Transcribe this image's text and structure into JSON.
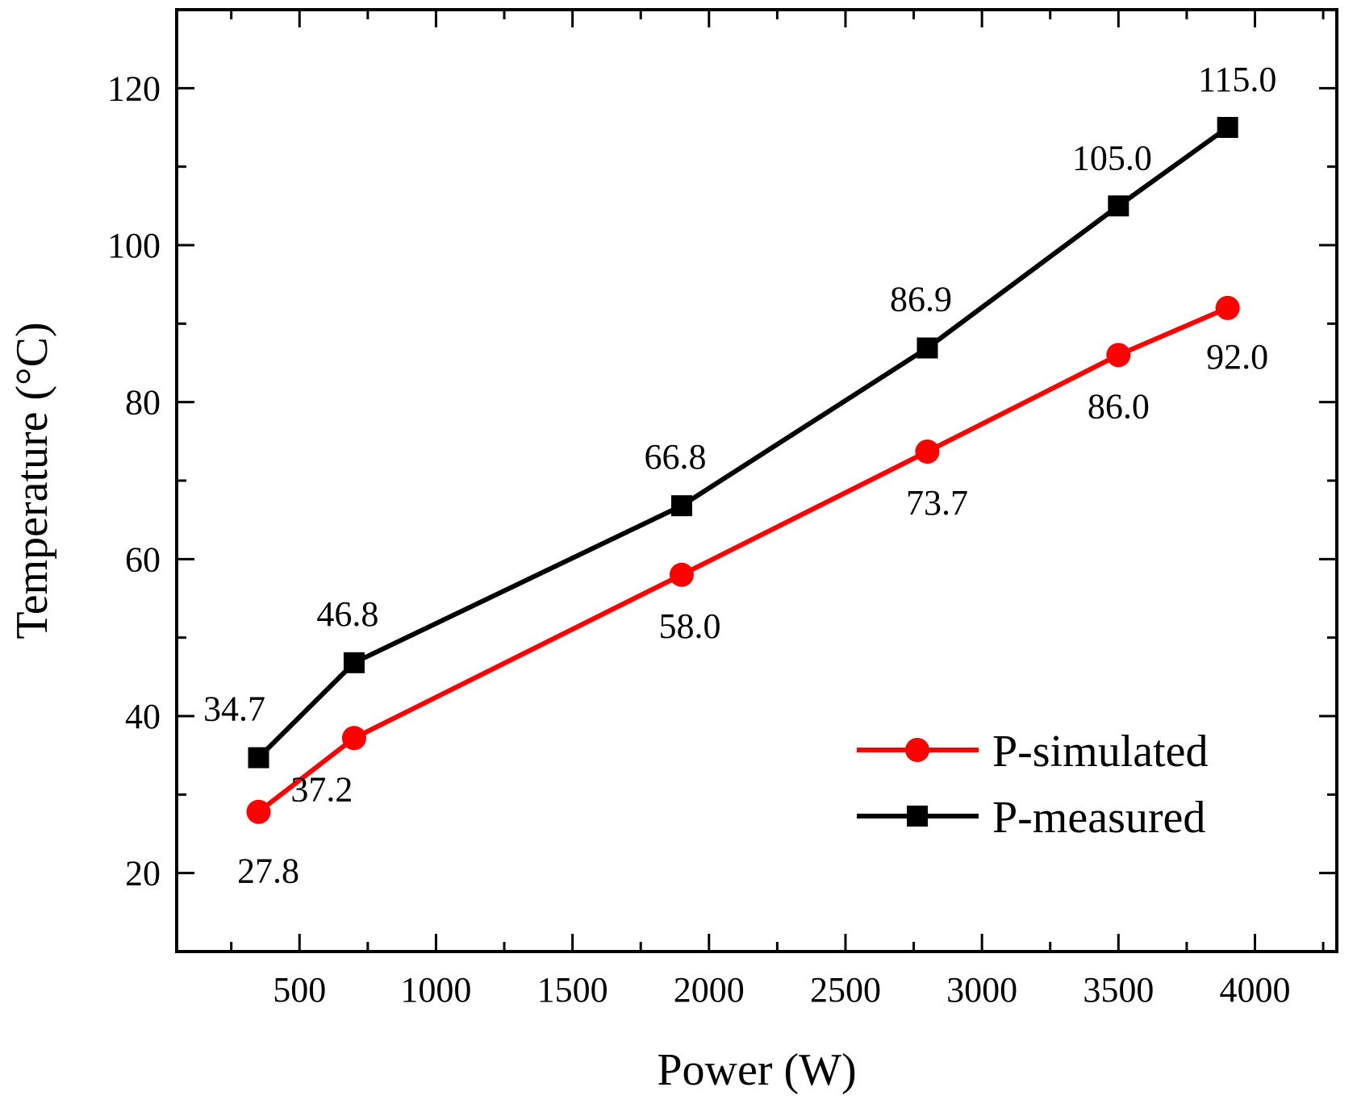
{
  "chart_data": {
    "type": "line",
    "xlabel": "Power (W)",
    "ylabel": "Temperature (°C)",
    "xlim": [
      50,
      4300
    ],
    "ylim": [
      10,
      130
    ],
    "x_ticks": [
      500,
      1000,
      1500,
      2000,
      2500,
      3000,
      3500,
      4000
    ],
    "y_ticks": [
      20,
      40,
      60,
      80,
      100,
      120
    ],
    "grid": false,
    "legend_position": "bottom-right",
    "series": [
      {
        "name": "P-simulated",
        "color": "#ff0000",
        "marker": "circle",
        "x": [
          350,
          700,
          1900,
          2800,
          3500,
          3900
        ],
        "y": [
          27.8,
          37.2,
          58.0,
          73.7,
          86.0,
          92.0
        ],
        "labels": [
          "27.8",
          "37.2",
          "58.0",
          "73.7",
          "86.0",
          "92.0"
        ]
      },
      {
        "name": "P-measured",
        "color": "#000000",
        "marker": "square",
        "x": [
          350,
          700,
          1900,
          2800,
          3500,
          3900
        ],
        "y": [
          34.7,
          46.8,
          66.8,
          86.9,
          105.0,
          115.0
        ],
        "labels": [
          "34.7",
          "46.8",
          "66.8",
          "86.9",
          "105.0",
          "115.0"
        ]
      }
    ]
  }
}
